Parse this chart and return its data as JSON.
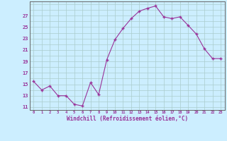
{
  "x": [
    0,
    1,
    2,
    3,
    4,
    5,
    6,
    7,
    8,
    9,
    10,
    11,
    12,
    13,
    14,
    15,
    16,
    17,
    18,
    19,
    20,
    21,
    22,
    23
  ],
  "y": [
    15.5,
    14.0,
    14.7,
    13.0,
    13.0,
    11.5,
    11.2,
    15.3,
    13.2,
    19.3,
    22.8,
    24.8,
    26.5,
    27.8,
    28.3,
    28.7,
    26.8,
    26.5,
    26.8,
    25.3,
    23.8,
    21.2,
    19.5,
    19.5
  ],
  "line_color": "#993399",
  "marker_color": "#993399",
  "bg_color": "#cceeff",
  "grid_color": "#aacccc",
  "xlabel": "Windchill (Refroidissement éolien,°C)",
  "ylim": [
    10.5,
    29.5
  ],
  "xlim": [
    -0.5,
    23.5
  ],
  "yticks": [
    11,
    13,
    15,
    17,
    19,
    21,
    23,
    25,
    27
  ],
  "xticks": [
    0,
    1,
    2,
    3,
    4,
    5,
    6,
    7,
    8,
    9,
    10,
    11,
    12,
    13,
    14,
    15,
    16,
    17,
    18,
    19,
    20,
    21,
    22,
    23
  ],
  "xtick_labels": [
    "0",
    "1",
    "2",
    "3",
    "4",
    "5",
    "6",
    "7",
    "8",
    "9",
    "10",
    "11",
    "12",
    "13",
    "14",
    "15",
    "16",
    "17",
    "18",
    "19",
    "20",
    "21",
    "22",
    "23"
  ]
}
